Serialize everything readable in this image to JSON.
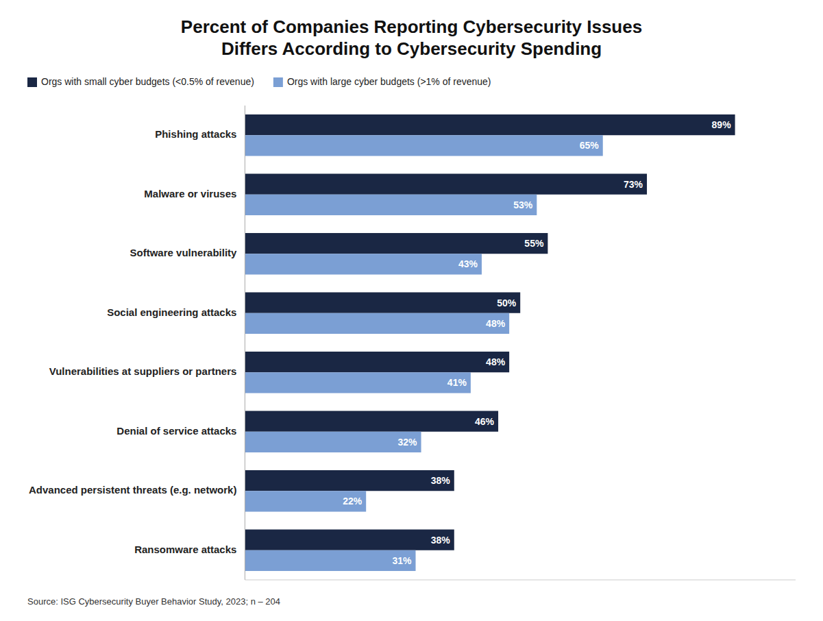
{
  "chart_data": {
    "type": "bar",
    "orientation": "horizontal",
    "title": "Percent of Companies Reporting Cybersecurity Issues\nDiffers According to Cybersecurity Spending",
    "categories": [
      "Ransomware attacks",
      "Advanced persistent threats (e.g. network)",
      "Denial of service attacks",
      "Vulnerabilities at suppliers or partners",
      "Social engineering attacks",
      "Software vulnerability",
      "Malware or viruses",
      "Phishing attacks"
    ],
    "series": [
      {
        "name": "Orgs with small cyber budgets (<0.5% of revenue)",
        "color": "#1a2744",
        "values": [
          38,
          38,
          46,
          48,
          50,
          55,
          73,
          89
        ],
        "value_labels": [
          "38%",
          "38%",
          "46%",
          "48%",
          "50%",
          "55%",
          "73%",
          "89%"
        ]
      },
      {
        "name": "Orgs with large cyber budgets (>1% of revenue)",
        "color": "#7b9fd4",
        "values": [
          31,
          22,
          32,
          41,
          48,
          43,
          53,
          65
        ],
        "value_labels": [
          "31%",
          "22%",
          "32%",
          "41%",
          "48%",
          "43%",
          "53%",
          "65%"
        ]
      }
    ],
    "xlim": [
      0,
      100
    ],
    "data_labels": true,
    "tick_labels": "y",
    "legend": "upper left",
    "annotations": [
      "Source: ISG Cybersecurity Buyer Behavior Study, 2023; n – 204"
    ]
  }
}
